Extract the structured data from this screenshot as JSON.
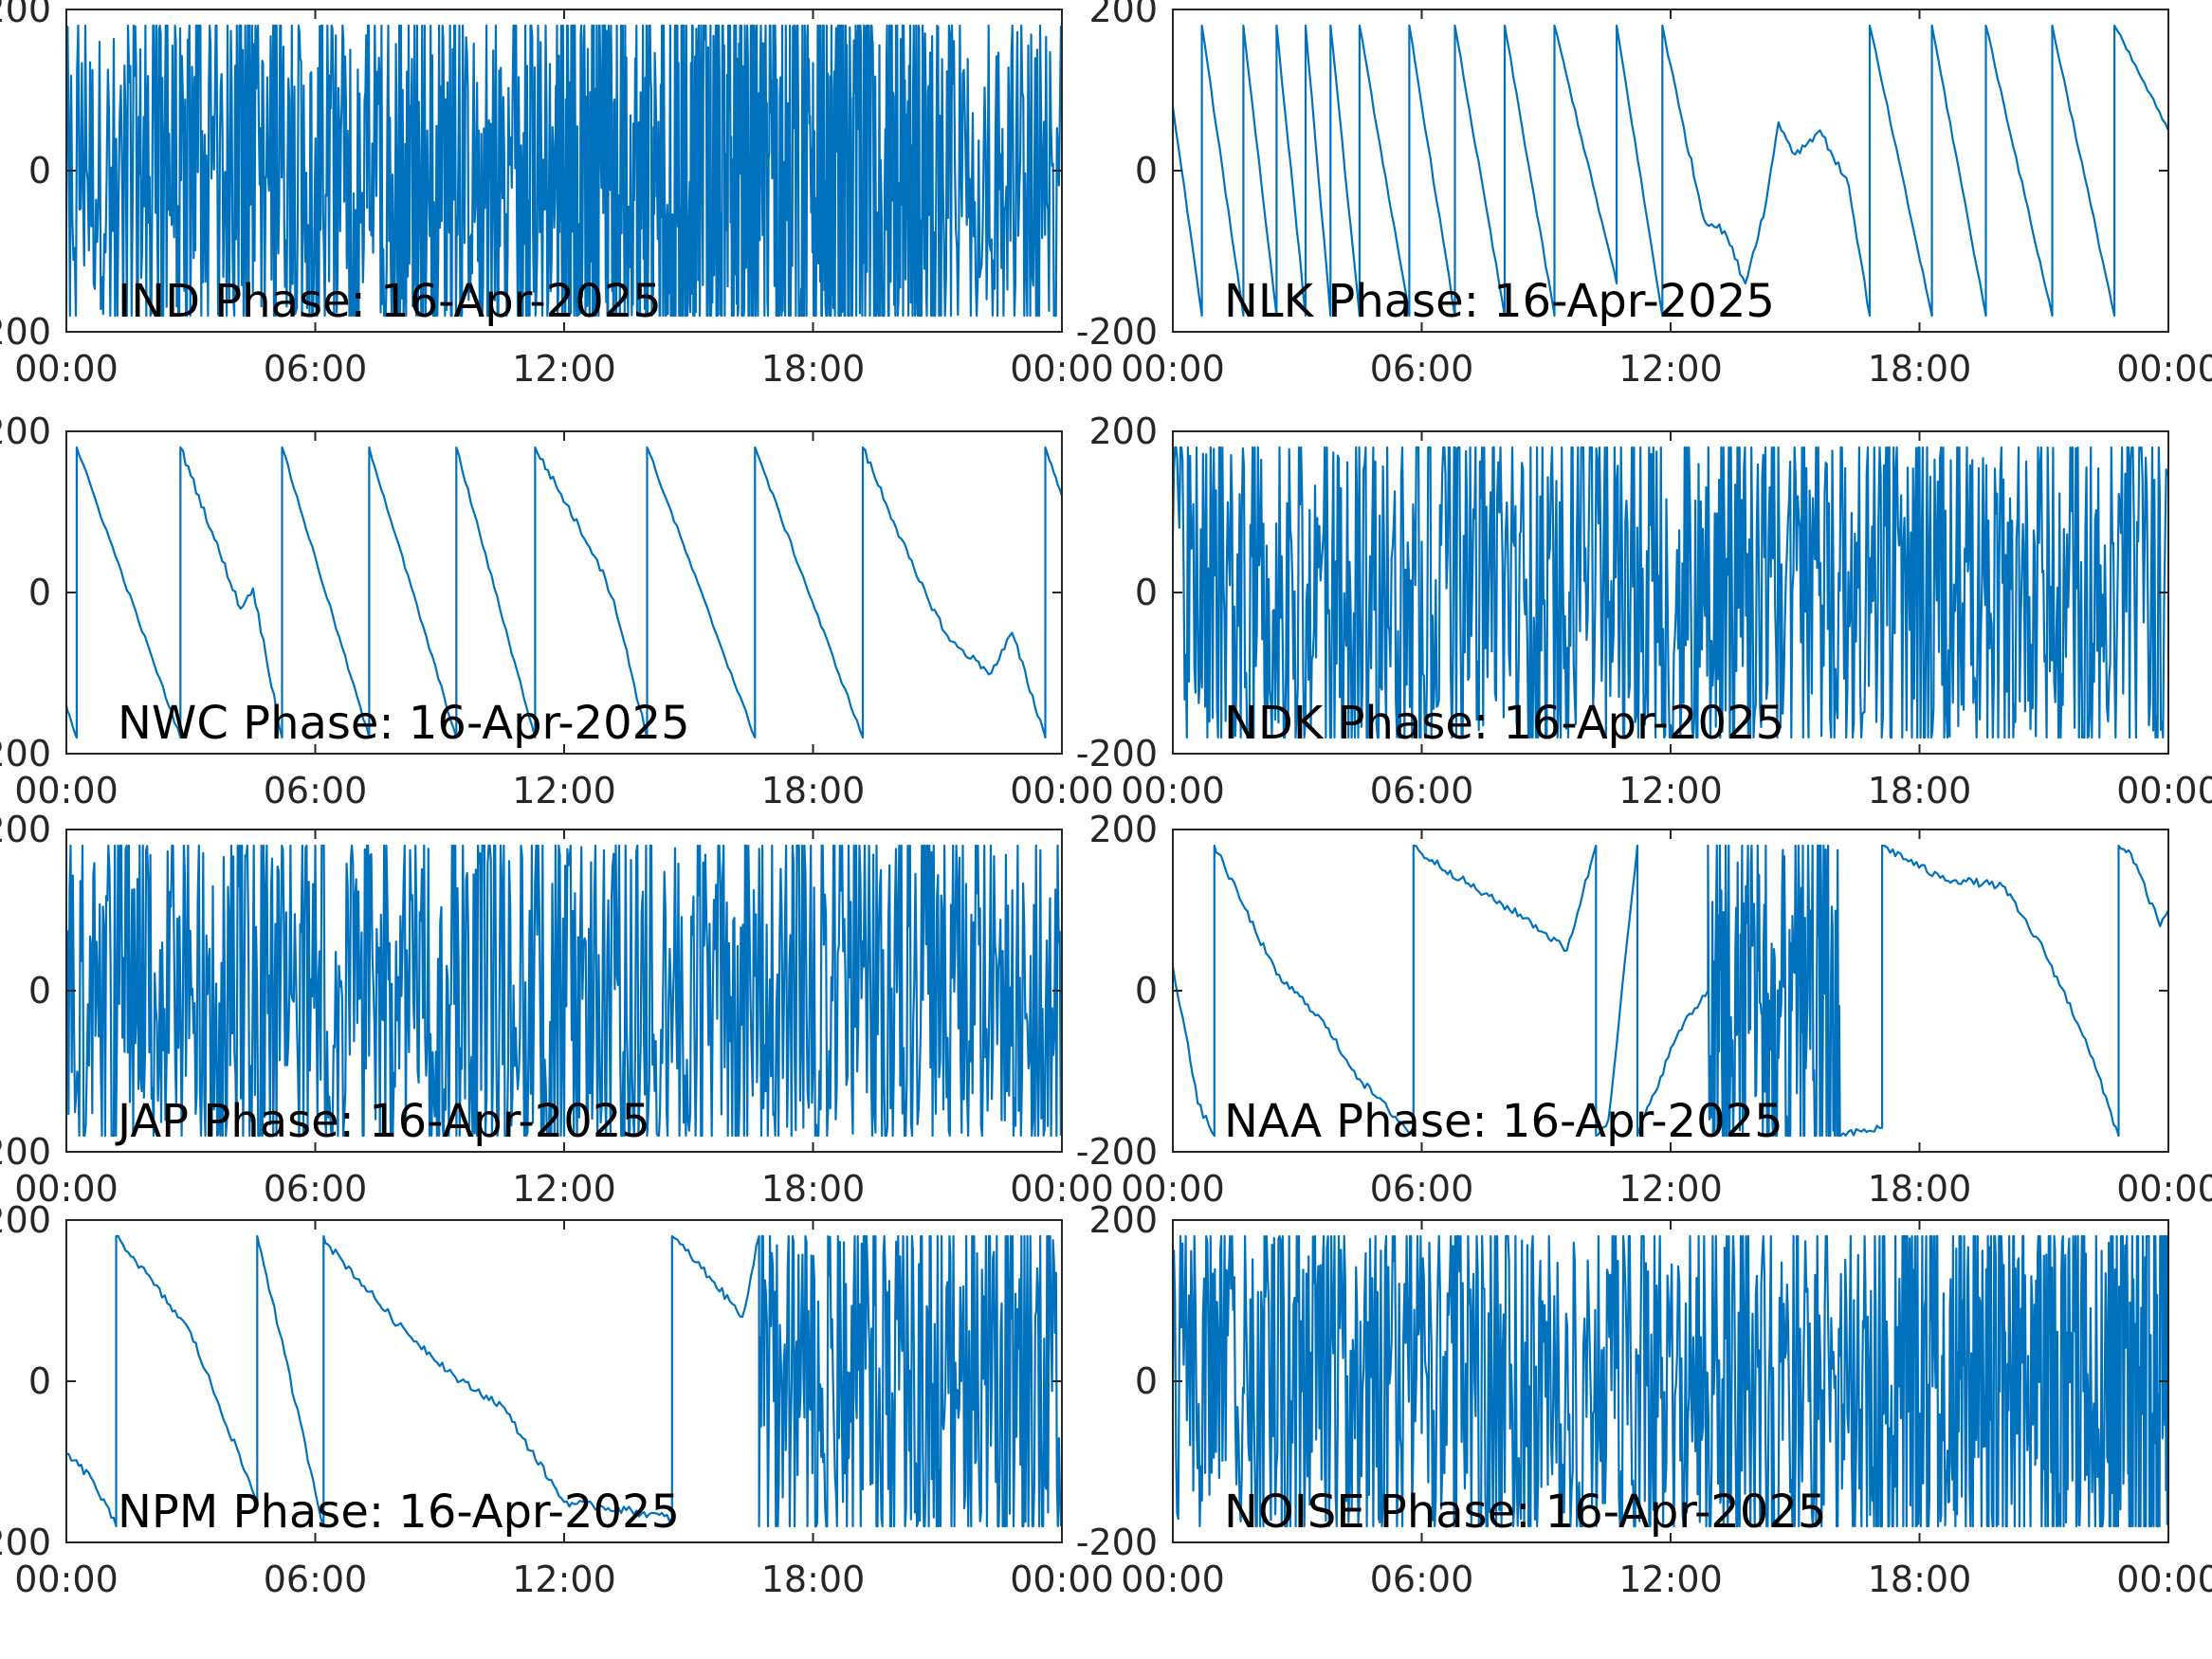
{
  "figure": {
    "layout": "4 rows x 2 columns",
    "line_color": "#0072BD",
    "background": "#FFFFFF"
  },
  "chart_data": [
    {
      "type": "line",
      "title": "IND Phase: 16-Apr-2025",
      "xlim": [
        "00:00",
        "00:00 (+1 day)"
      ],
      "xticks": [
        "00:00",
        "06:00",
        "12:00",
        "18:00",
        "00:00"
      ],
      "ylim": [
        -200,
        200
      ],
      "yticks": [
        "-200",
        "0",
        "200"
      ],
      "grid": false,
      "segments": [
        {
          "mode": "noise",
          "x_hours": [
            0,
            1.6
          ],
          "density": 0.5
        },
        {
          "mode": "noise",
          "x_hours": [
            1.6,
            11.8
          ],
          "density": 0.7
        },
        {
          "mode": "noise",
          "x_hours": [
            11.8,
            20.8
          ],
          "density": 1.0
        },
        {
          "mode": "noise",
          "x_hours": [
            20.8,
            24
          ],
          "density": 0.6
        }
      ]
    },
    {
      "type": "line",
      "title": "NLK Phase: 16-Apr-2025",
      "xlim": [
        "00:00",
        "00:00 (+1 day)"
      ],
      "xticks": [
        "00:00",
        "06:00",
        "12:00",
        "18:00",
        "00:00"
      ],
      "ylim": [
        -200,
        200
      ],
      "yticks": [
        "-200",
        "0",
        "200"
      ],
      "grid": false,
      "segments": [
        {
          "mode": "ramp",
          "x_hours": [
            0,
            0.7
          ],
          "y": [
            80,
            -180
          ]
        },
        {
          "mode": "ramp",
          "x_hours": [
            0.7,
            1.7
          ],
          "y": [
            180,
            -180
          ]
        },
        {
          "mode": "ramp",
          "x_hours": [
            1.7,
            2.5
          ],
          "y": [
            180,
            -180
          ]
        },
        {
          "mode": "ramp",
          "x_hours": [
            2.5,
            3.2
          ],
          "y": [
            180,
            -180
          ]
        },
        {
          "mode": "ramp",
          "x_hours": [
            3.2,
            3.8
          ],
          "y": [
            180,
            -180
          ]
        },
        {
          "mode": "ramp",
          "x_hours": [
            3.8,
            4.5
          ],
          "y": [
            180,
            -180
          ]
        },
        {
          "mode": "ramp",
          "x_hours": [
            4.5,
            5.7
          ],
          "y": [
            180,
            -180
          ]
        },
        {
          "mode": "ramp",
          "x_hours": [
            5.7,
            6.8
          ],
          "y": [
            180,
            -180
          ]
        },
        {
          "mode": "ramp",
          "x_hours": [
            6.8,
            8.0
          ],
          "y": [
            180,
            -180
          ]
        },
        {
          "mode": "ramp",
          "x_hours": [
            8.0,
            9.2
          ],
          "y": [
            180,
            -180
          ]
        },
        {
          "mode": "ramp",
          "x_hours": [
            9.2,
            10.7
          ],
          "y": [
            180,
            -140
          ]
        },
        {
          "mode": "ramp",
          "x_hours": [
            10.7,
            11.8
          ],
          "y": [
            180,
            -180
          ]
        },
        {
          "mode": "points",
          "x_hours": [
            11.8,
            12.2,
            12.8,
            13.3,
            13.8,
            14.3,
            14.6,
            15.0,
            15.6,
            16.3,
            16.8
          ],
          "y": [
            180,
            80,
            -60,
            -75,
            -140,
            -40,
            60,
            20,
            50,
            -20,
            -180
          ]
        },
        {
          "mode": "ramp",
          "x_hours": [
            16.8,
            18.3
          ],
          "y": [
            180,
            -180
          ]
        },
        {
          "mode": "ramp",
          "x_hours": [
            18.3,
            19.6
          ],
          "y": [
            180,
            -180
          ]
        },
        {
          "mode": "ramp",
          "x_hours": [
            19.6,
            21.2
          ],
          "y": [
            180,
            -180
          ]
        },
        {
          "mode": "ramp",
          "x_hours": [
            21.2,
            22.7
          ],
          "y": [
            180,
            -180
          ]
        },
        {
          "mode": "ramp",
          "x_hours": [
            22.7,
            24
          ],
          "y": [
            180,
            50
          ]
        }
      ]
    },
    {
      "type": "line",
      "title": "NWC Phase: 16-Apr-2025",
      "xlim": [
        "00:00",
        "00:00 (+1 day)"
      ],
      "xticks": [
        "00:00",
        "06:00",
        "12:00",
        "18:00",
        "00:00"
      ],
      "ylim": [
        -200,
        200
      ],
      "yticks": [
        "-200",
        "0",
        "200"
      ],
      "grid": false,
      "segments": [
        {
          "mode": "ramp",
          "x_hours": [
            0,
            0.25
          ],
          "y": [
            -140,
            -180
          ]
        },
        {
          "mode": "ramp",
          "x_hours": [
            0.25,
            2.75
          ],
          "y": [
            180,
            -180
          ]
        },
        {
          "mode": "points",
          "x_hours": [
            2.75,
            4.2,
            4.5,
            5.2
          ],
          "y": [
            180,
            -20,
            5,
            -180
          ]
        },
        {
          "mode": "ramp",
          "x_hours": [
            5.2,
            7.3
          ],
          "y": [
            180,
            -180
          ]
        },
        {
          "mode": "ramp",
          "x_hours": [
            7.3,
            9.4
          ],
          "y": [
            180,
            -180
          ]
        },
        {
          "mode": "ramp",
          "x_hours": [
            9.4,
            11.3
          ],
          "y": [
            180,
            -180
          ]
        },
        {
          "mode": "points",
          "x_hours": [
            11.3,
            12.8,
            13.2,
            14.0
          ],
          "y": [
            180,
            40,
            -10,
            -180
          ]
        },
        {
          "mode": "ramp",
          "x_hours": [
            14.0,
            16.6
          ],
          "y": [
            180,
            -180
          ]
        },
        {
          "mode": "ramp",
          "x_hours": [
            16.6,
            19.2
          ],
          "y": [
            180,
            -180
          ]
        },
        {
          "mode": "points",
          "x_hours": [
            19.2,
            20.5,
            21.3,
            22.3,
            22.8,
            23.6
          ],
          "y": [
            180,
            20,
            -60,
            -100,
            -50,
            -180
          ]
        },
        {
          "mode": "ramp",
          "x_hours": [
            23.6,
            24
          ],
          "y": [
            180,
            120
          ]
        }
      ]
    },
    {
      "type": "line",
      "title": "NDK Phase: 16-Apr-2025",
      "xlim": [
        "00:00",
        "00:00 (+1 day)"
      ],
      "xticks": [
        "00:00",
        "06:00",
        "12:00",
        "18:00",
        "00:00"
      ],
      "ylim": [
        -200,
        200
      ],
      "yticks": [
        "-200",
        "0",
        "200"
      ],
      "grid": false,
      "segments": [
        {
          "mode": "noise",
          "x_hours": [
            0,
            24
          ],
          "density": 0.55
        }
      ]
    },
    {
      "type": "line",
      "title": "JAP Phase: 16-Apr-2025",
      "xlim": [
        "00:00",
        "00:00 (+1 day)"
      ],
      "xticks": [
        "00:00",
        "06:00",
        "12:00",
        "18:00",
        "00:00"
      ],
      "ylim": [
        -200,
        200
      ],
      "yticks": [
        "-200",
        "0",
        "200"
      ],
      "grid": false,
      "segments": [
        {
          "mode": "noise",
          "x_hours": [
            0,
            24
          ],
          "density": 0.55
        }
      ]
    },
    {
      "type": "line",
      "title": "NAA Phase: 16-Apr-2025",
      "xlim": [
        "00:00",
        "00:00 (+1 day)"
      ],
      "xticks": [
        "00:00",
        "06:00",
        "12:00",
        "18:00",
        "00:00"
      ],
      "ylim": [
        -200,
        200
      ],
      "yticks": [
        "-200",
        "0",
        "200"
      ],
      "grid": false,
      "segments": [
        {
          "mode": "points",
          "x_hours": [
            0,
            0.3,
            0.6,
            1.0
          ],
          "y": [
            30,
            -50,
            -140,
            -180
          ]
        },
        {
          "mode": "points",
          "x_hours": [
            1.0,
            1.1,
            2.5,
            3.5,
            4.5,
            5.8
          ],
          "y": [
            180,
            170,
            20,
            -30,
            -110,
            -180
          ]
        },
        {
          "mode": "points",
          "x_hours": [
            5.8,
            6.0,
            7.5,
            8.5,
            9.5,
            10.2
          ],
          "y": [
            180,
            170,
            120,
            90,
            50,
            180
          ]
        },
        {
          "mode": "points",
          "x_hours": [
            10.2,
            10.5,
            11.2
          ],
          "y": [
            -180,
            -160,
            180
          ]
        },
        {
          "mode": "points",
          "x_hours": [
            11.2,
            11.5,
            12.2,
            12.9
          ],
          "y": [
            -180,
            -140,
            -50,
            0
          ]
        },
        {
          "mode": "noise",
          "x_hours": [
            12.9,
            16.1
          ],
          "density": 0.8
        },
        {
          "mode": "points",
          "x_hours": [
            16.1,
            17.1,
            17.1,
            18.5,
            20.0,
            21.0,
            22.0,
            22.8
          ],
          "y": [
            -180,
            -170,
            180,
            140,
            130,
            50,
            -60,
            -180
          ]
        },
        {
          "mode": "points",
          "x_hours": [
            22.8,
            23.1,
            23.8,
            24
          ],
          "y": [
            180,
            170,
            80,
            100
          ]
        }
      ]
    },
    {
      "type": "line",
      "title": "NPM Phase: 16-Apr-2025",
      "xlim": [
        "00:00",
        "00:00 (+1 day)"
      ],
      "xticks": [
        "00:00",
        "06:00",
        "12:00",
        "18:00",
        "00:00"
      ],
      "ylim": [
        -200,
        200
      ],
      "yticks": [
        "-200",
        "0",
        "200"
      ],
      "grid": false,
      "segments": [
        {
          "mode": "points",
          "x_hours": [
            0,
            0.6,
            1.2
          ],
          "y": [
            -90,
            -120,
            -180
          ]
        },
        {
          "mode": "points",
          "x_hours": [
            1.2,
            1.3,
            3.0,
            4.6
          ],
          "y": [
            180,
            175,
            60,
            -150
          ]
        },
        {
          "mode": "points",
          "x_hours": [
            4.6,
            4.7,
            6.2
          ],
          "y": [
            180,
            160,
            -180
          ]
        },
        {
          "mode": "points",
          "x_hours": [
            6.2,
            6.3,
            8.0,
            9.5,
            10.5,
            12.0,
            13.5,
            14.6
          ],
          "y": [
            180,
            170,
            70,
            0,
            -30,
            -150,
            -160,
            -170
          ]
        },
        {
          "mode": "points",
          "x_hours": [
            14.6,
            14.8,
            15.5,
            16.3,
            16.7
          ],
          "y": [
            180,
            170,
            130,
            80,
            180
          ]
        },
        {
          "mode": "noise",
          "x_hours": [
            16.7,
            24
          ],
          "density": 0.6
        }
      ]
    },
    {
      "type": "line",
      "title": "NOISE Phase: 16-Apr-2025",
      "xlim": [
        "00:00",
        "00:00 (+1 day)"
      ],
      "xticks": [
        "00:00",
        "06:00",
        "12:00",
        "18:00",
        "00:00"
      ],
      "ylim": [
        -200,
        200
      ],
      "yticks": [
        "-200",
        "0",
        "200"
      ],
      "grid": false,
      "segments": [
        {
          "mode": "noise",
          "x_hours": [
            0,
            16.6
          ],
          "density": 0.55
        },
        {
          "mode": "noise",
          "x_hours": [
            16.6,
            22.6
          ],
          "density": 0.75
        },
        {
          "mode": "noise",
          "x_hours": [
            22.6,
            24
          ],
          "density": 1.0
        }
      ]
    }
  ]
}
